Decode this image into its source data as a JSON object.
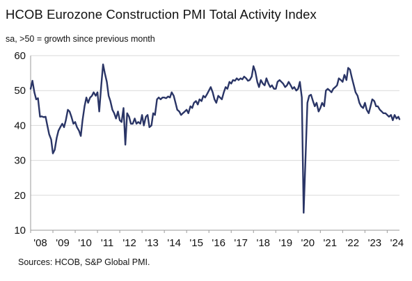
{
  "title": "HCOB Eurozone Construction PMI Total Activity Index",
  "subtitle": "sa, >50 = growth  since previous  month",
  "source": "Sources: HCOB, S&P Global PMI.",
  "colors": {
    "line": "#2a3566",
    "grid": "#d9d9d9",
    "axis": "#9a9a9a",
    "text": "#111111"
  },
  "chart_data": {
    "type": "line",
    "title": "HCOB Eurozone Construction PMI Total Activity Index",
    "xlabel": "",
    "ylabel": "",
    "ylim": [
      10,
      60
    ],
    "yticks": [
      10,
      20,
      30,
      40,
      50,
      60
    ],
    "xlim": [
      2008.0,
      2024.55
    ],
    "xtick_labels": [
      "'08",
      "'09",
      "'10",
      "'11",
      "'12",
      "'13",
      "'14",
      "'15",
      "'16",
      "'17",
      "'18",
      "'19",
      "'20",
      "'21",
      "'22",
      "'23",
      "'24"
    ],
    "grid": "horizontal",
    "legend": "none",
    "series": [
      {
        "points": [
          [
            2008.0,
            50.5
          ],
          [
            2008.08,
            52.8
          ],
          [
            2008.17,
            49.5
          ],
          [
            2008.25,
            47.5
          ],
          [
            2008.33,
            47.8
          ],
          [
            2008.42,
            42.5
          ],
          [
            2008.5,
            42.6
          ],
          [
            2008.58,
            42.4
          ],
          [
            2008.67,
            42.5
          ],
          [
            2008.75,
            40.0
          ],
          [
            2008.83,
            37.5
          ],
          [
            2008.92,
            36.0
          ],
          [
            2009.0,
            32.0
          ],
          [
            2009.08,
            33.0
          ],
          [
            2009.17,
            36.5
          ],
          [
            2009.25,
            38.5
          ],
          [
            2009.33,
            39.5
          ],
          [
            2009.42,
            40.5
          ],
          [
            2009.5,
            39.5
          ],
          [
            2009.58,
            41.5
          ],
          [
            2009.67,
            44.5
          ],
          [
            2009.75,
            44.0
          ],
          [
            2009.83,
            42.5
          ],
          [
            2009.92,
            40.5
          ],
          [
            2010.0,
            41.0
          ],
          [
            2010.08,
            39.5
          ],
          [
            2010.17,
            38.5
          ],
          [
            2010.25,
            37.0
          ],
          [
            2010.33,
            41.5
          ],
          [
            2010.42,
            45.5
          ],
          [
            2010.5,
            48.0
          ],
          [
            2010.58,
            46.5
          ],
          [
            2010.67,
            48.0
          ],
          [
            2010.75,
            48.5
          ],
          [
            2010.83,
            49.5
          ],
          [
            2010.92,
            48.5
          ],
          [
            2011.0,
            49.5
          ],
          [
            2011.08,
            44.0
          ],
          [
            2011.17,
            51.5
          ],
          [
            2011.25,
            57.5
          ],
          [
            2011.33,
            55.0
          ],
          [
            2011.42,
            52.5
          ],
          [
            2011.5,
            48.5
          ],
          [
            2011.58,
            47.0
          ],
          [
            2011.67,
            44.5
          ],
          [
            2011.75,
            43.5
          ],
          [
            2011.83,
            42.0
          ],
          [
            2011.92,
            44.0
          ],
          [
            2012.0,
            41.5
          ],
          [
            2012.08,
            41.0
          ],
          [
            2012.17,
            45.0
          ],
          [
            2012.25,
            34.5
          ],
          [
            2012.33,
            43.5
          ],
          [
            2012.42,
            42.5
          ],
          [
            2012.5,
            40.5
          ],
          [
            2012.58,
            40.5
          ],
          [
            2012.67,
            42.0
          ],
          [
            2012.75,
            40.5
          ],
          [
            2012.83,
            41.0
          ],
          [
            2012.92,
            40.5
          ],
          [
            2013.0,
            43.0
          ],
          [
            2013.08,
            40.0
          ],
          [
            2013.17,
            42.5
          ],
          [
            2013.25,
            43.0
          ],
          [
            2013.33,
            39.5
          ],
          [
            2013.42,
            40.0
          ],
          [
            2013.5,
            43.5
          ],
          [
            2013.58,
            43.0
          ],
          [
            2013.67,
            47.5
          ],
          [
            2013.75,
            48.0
          ],
          [
            2013.83,
            47.5
          ],
          [
            2013.92,
            48.0
          ],
          [
            2014.0,
            48.0
          ],
          [
            2014.08,
            47.8
          ],
          [
            2014.17,
            48.3
          ],
          [
            2014.25,
            48.0
          ],
          [
            2014.33,
            49.5
          ],
          [
            2014.42,
            48.5
          ],
          [
            2014.5,
            46.5
          ],
          [
            2014.58,
            44.5
          ],
          [
            2014.67,
            44.0
          ],
          [
            2014.75,
            43.0
          ],
          [
            2014.83,
            43.5
          ],
          [
            2014.92,
            44.0
          ],
          [
            2015.0,
            44.5
          ],
          [
            2015.08,
            43.5
          ],
          [
            2015.17,
            45.5
          ],
          [
            2015.25,
            45.0
          ],
          [
            2015.33,
            46.5
          ],
          [
            2015.42,
            47.0
          ],
          [
            2015.5,
            46.0
          ],
          [
            2015.58,
            47.5
          ],
          [
            2015.67,
            47.0
          ],
          [
            2015.75,
            48.5
          ],
          [
            2015.83,
            48.0
          ],
          [
            2015.92,
            49.0
          ],
          [
            2016.0,
            50.0
          ],
          [
            2016.08,
            51.0
          ],
          [
            2016.17,
            49.5
          ],
          [
            2016.25,
            47.5
          ],
          [
            2016.33,
            46.5
          ],
          [
            2016.42,
            48.5
          ],
          [
            2016.5,
            48.0
          ],
          [
            2016.58,
            47.5
          ],
          [
            2016.67,
            49.5
          ],
          [
            2016.75,
            51.0
          ],
          [
            2016.83,
            50.5
          ],
          [
            2016.92,
            52.5
          ],
          [
            2017.0,
            52.0
          ],
          [
            2017.08,
            53.0
          ],
          [
            2017.17,
            52.8
          ],
          [
            2017.25,
            53.5
          ],
          [
            2017.33,
            53.0
          ],
          [
            2017.42,
            53.5
          ],
          [
            2017.5,
            53.2
          ],
          [
            2017.58,
            54.0
          ],
          [
            2017.67,
            53.5
          ],
          [
            2017.75,
            52.8
          ],
          [
            2017.83,
            53.0
          ],
          [
            2017.92,
            54.0
          ],
          [
            2018.0,
            57.0
          ],
          [
            2018.08,
            55.5
          ],
          [
            2018.17,
            52.5
          ],
          [
            2018.25,
            51.0
          ],
          [
            2018.33,
            53.0
          ],
          [
            2018.42,
            52.0
          ],
          [
            2018.5,
            51.5
          ],
          [
            2018.58,
            53.5
          ],
          [
            2018.67,
            52.0
          ],
          [
            2018.75,
            51.0
          ],
          [
            2018.83,
            51.5
          ],
          [
            2018.92,
            50.5
          ],
          [
            2019.0,
            50.5
          ],
          [
            2019.08,
            52.5
          ],
          [
            2019.17,
            53.0
          ],
          [
            2019.25,
            52.5
          ],
          [
            2019.33,
            52.0
          ],
          [
            2019.42,
            51.0
          ],
          [
            2019.5,
            51.5
          ],
          [
            2019.58,
            52.5
          ],
          [
            2019.67,
            51.5
          ],
          [
            2019.75,
            50.5
          ],
          [
            2019.83,
            51.0
          ],
          [
            2019.92,
            50.0
          ],
          [
            2020.0,
            50.5
          ],
          [
            2020.08,
            52.5
          ],
          [
            2020.17,
            48.0
          ],
          [
            2020.25,
            15.0
          ],
          [
            2020.33,
            30.0
          ],
          [
            2020.42,
            46.5
          ],
          [
            2020.5,
            48.5
          ],
          [
            2020.58,
            48.8
          ],
          [
            2020.67,
            47.0
          ],
          [
            2020.75,
            45.5
          ],
          [
            2020.83,
            46.5
          ],
          [
            2020.92,
            44.0
          ],
          [
            2021.0,
            45.0
          ],
          [
            2021.08,
            46.5
          ],
          [
            2021.17,
            45.5
          ],
          [
            2021.25,
            50.0
          ],
          [
            2021.33,
            50.5
          ],
          [
            2021.42,
            50.0
          ],
          [
            2021.5,
            49.5
          ],
          [
            2021.58,
            50.5
          ],
          [
            2021.67,
            51.0
          ],
          [
            2021.75,
            51.5
          ],
          [
            2021.83,
            53.5
          ],
          [
            2021.92,
            53.0
          ],
          [
            2022.0,
            52.5
          ],
          [
            2022.08,
            54.5
          ],
          [
            2022.17,
            53.0
          ],
          [
            2022.25,
            56.5
          ],
          [
            2022.33,
            56.0
          ],
          [
            2022.42,
            53.5
          ],
          [
            2022.5,
            51.5
          ],
          [
            2022.58,
            49.5
          ],
          [
            2022.67,
            48.5
          ],
          [
            2022.75,
            46.5
          ],
          [
            2022.83,
            45.5
          ],
          [
            2022.92,
            45.0
          ],
          [
            2023.0,
            46.5
          ],
          [
            2023.08,
            44.5
          ],
          [
            2023.17,
            43.5
          ],
          [
            2023.25,
            45.5
          ],
          [
            2023.33,
            47.5
          ],
          [
            2023.42,
            47.0
          ],
          [
            2023.5,
            45.5
          ],
          [
            2023.58,
            45.5
          ],
          [
            2023.67,
            44.5
          ],
          [
            2023.75,
            44.0
          ],
          [
            2023.83,
            43.5
          ],
          [
            2023.92,
            43.5
          ],
          [
            2024.0,
            43.0
          ],
          [
            2024.08,
            42.5
          ],
          [
            2024.17,
            43.0
          ],
          [
            2024.25,
            41.5
          ],
          [
            2024.33,
            43.0
          ],
          [
            2024.42,
            42.0
          ],
          [
            2024.5,
            42.5
          ],
          [
            2024.55,
            41.8
          ]
        ]
      }
    ]
  }
}
